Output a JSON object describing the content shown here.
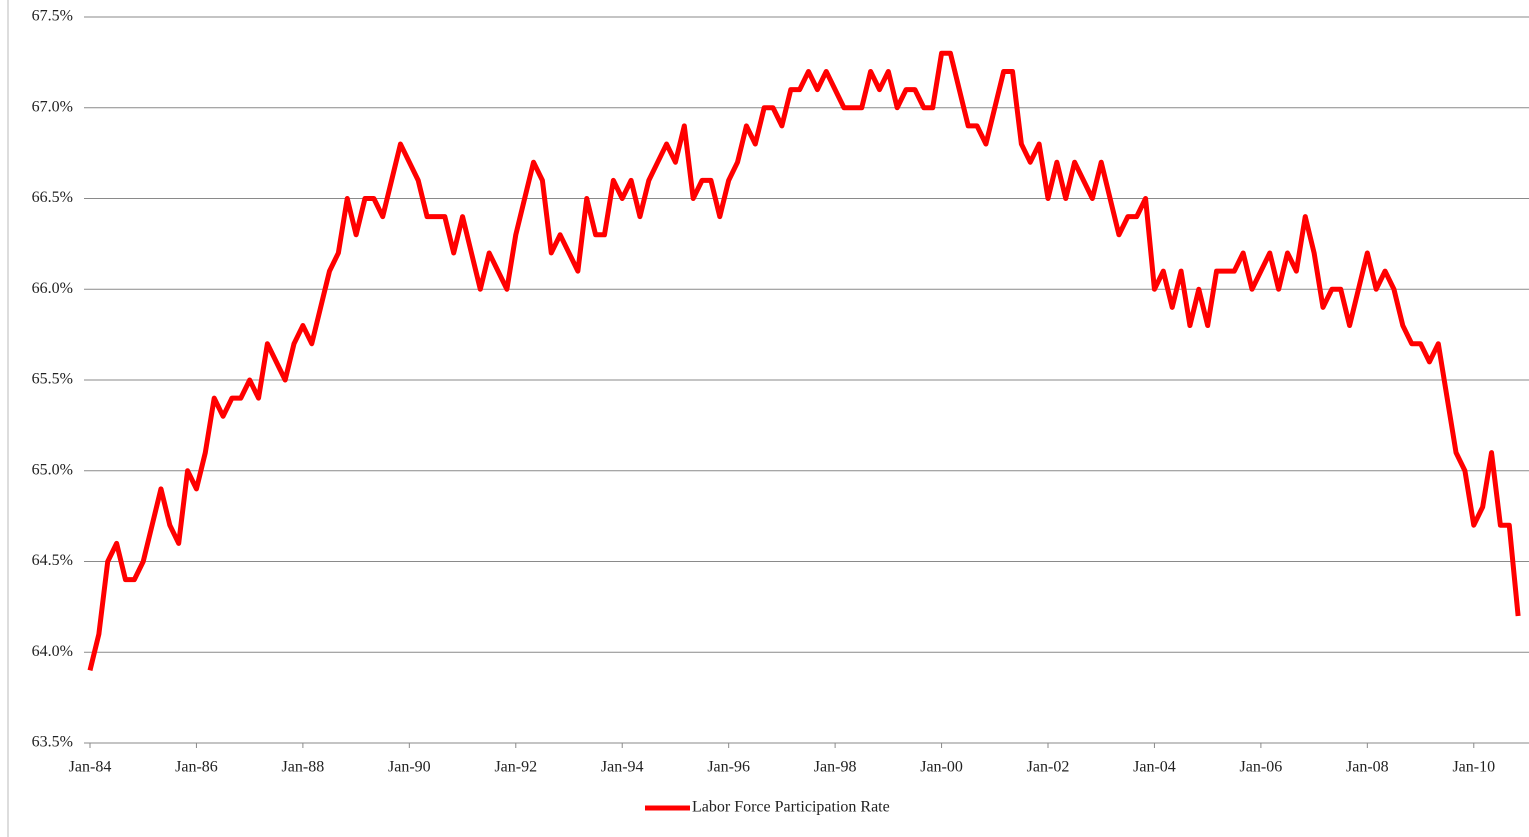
{
  "chart_data": {
    "type": "line",
    "x": [
      "1984-01",
      "1984-03",
      "1984-05",
      "1984-07",
      "1984-09",
      "1984-11",
      "1985-01",
      "1985-03",
      "1985-05",
      "1985-07",
      "1985-09",
      "1985-11",
      "1986-01",
      "1986-03",
      "1986-05",
      "1986-07",
      "1986-09",
      "1986-11",
      "1987-01",
      "1987-03",
      "1987-05",
      "1987-07",
      "1987-09",
      "1987-11",
      "1988-01",
      "1988-03",
      "1988-05",
      "1988-07",
      "1988-09",
      "1988-11",
      "1989-01",
      "1989-03",
      "1989-05",
      "1989-07",
      "1989-09",
      "1989-11",
      "1990-01",
      "1990-03",
      "1990-05",
      "1990-07",
      "1990-09",
      "1990-11",
      "1991-01",
      "1991-03",
      "1991-05",
      "1991-07",
      "1991-09",
      "1991-11",
      "1992-01",
      "1992-03",
      "1992-05",
      "1992-07",
      "1992-09",
      "1992-11",
      "1993-01",
      "1993-03",
      "1993-05",
      "1993-07",
      "1993-09",
      "1993-11",
      "1994-01",
      "1994-03",
      "1994-05",
      "1994-07",
      "1994-09",
      "1994-11",
      "1995-01",
      "1995-03",
      "1995-05",
      "1995-07",
      "1995-09",
      "1995-11",
      "1996-01",
      "1996-03",
      "1996-05",
      "1996-07",
      "1996-09",
      "1996-11",
      "1997-01",
      "1997-03",
      "1997-05",
      "1997-07",
      "1997-09",
      "1997-11",
      "1998-01",
      "1998-03",
      "1998-05",
      "1998-07",
      "1998-09",
      "1998-11",
      "1999-01",
      "1999-03",
      "1999-05",
      "1999-07",
      "1999-09",
      "1999-11",
      "2000-01",
      "2000-03",
      "2000-05",
      "2000-07",
      "2000-09",
      "2000-11",
      "2001-01",
      "2001-03",
      "2001-05",
      "2001-07",
      "2001-09",
      "2001-11",
      "2002-01",
      "2002-03",
      "2002-05",
      "2002-07",
      "2002-09",
      "2002-11",
      "2003-01",
      "2003-03",
      "2003-05",
      "2003-07",
      "2003-09",
      "2003-11",
      "2004-01",
      "2004-03",
      "2004-05",
      "2004-07",
      "2004-09",
      "2004-11",
      "2005-01",
      "2005-03",
      "2005-05",
      "2005-07",
      "2005-09",
      "2005-11",
      "2006-01",
      "2006-03",
      "2006-05",
      "2006-07",
      "2006-09",
      "2006-11",
      "2007-01",
      "2007-03",
      "2007-05",
      "2007-07",
      "2007-09",
      "2007-11",
      "2008-01",
      "2008-03",
      "2008-05",
      "2008-07",
      "2008-09",
      "2008-11",
      "2009-01",
      "2009-03",
      "2009-05",
      "2009-07",
      "2009-09",
      "2009-11",
      "2010-01",
      "2010-03",
      "2010-05",
      "2010-07",
      "2010-09",
      "2010-11"
    ],
    "series": [
      {
        "name": "Labor Force Participation Rate",
        "color": "#ff0000",
        "values": [
          63.9,
          64.1,
          64.5,
          64.6,
          64.4,
          64.4,
          64.5,
          64.7,
          64.9,
          64.7,
          64.6,
          65.0,
          64.9,
          65.1,
          65.4,
          65.3,
          65.4,
          65.4,
          65.5,
          65.4,
          65.7,
          65.6,
          65.5,
          65.7,
          65.8,
          65.7,
          65.9,
          66.1,
          66.2,
          66.5,
          66.3,
          66.5,
          66.5,
          66.4,
          66.6,
          66.8,
          66.7,
          66.6,
          66.4,
          66.4,
          66.4,
          66.2,
          66.4,
          66.2,
          66.0,
          66.2,
          66.1,
          66.0,
          66.3,
          66.5,
          66.7,
          66.6,
          66.2,
          66.3,
          66.2,
          66.1,
          66.5,
          66.3,
          66.3,
          66.6,
          66.5,
          66.6,
          66.4,
          66.6,
          66.7,
          66.8,
          66.7,
          66.9,
          66.5,
          66.6,
          66.6,
          66.4,
          66.6,
          66.7,
          66.9,
          66.8,
          67.0,
          67.0,
          66.9,
          67.1,
          67.1,
          67.2,
          67.1,
          67.2,
          67.1,
          67.0,
          67.0,
          67.0,
          67.2,
          67.1,
          67.2,
          67.0,
          67.1,
          67.1,
          67.0,
          67.0,
          67.3,
          67.3,
          67.1,
          66.9,
          66.9,
          66.8,
          67.0,
          67.2,
          67.2,
          66.8,
          66.7,
          66.8,
          66.5,
          66.7,
          66.5,
          66.7,
          66.6,
          66.5,
          66.7,
          66.5,
          66.3,
          66.4,
          66.4,
          66.5,
          66.0,
          66.1,
          65.9,
          66.1,
          65.8,
          66.0,
          65.8,
          66.1,
          66.1,
          66.1,
          66.2,
          66.0,
          66.1,
          66.2,
          66.0,
          66.2,
          66.1,
          66.4,
          66.2,
          65.9,
          66.0,
          66.0,
          65.8,
          66.0,
          66.2,
          66.0,
          66.1,
          66.0,
          65.8,
          65.7,
          65.7,
          65.6,
          65.7,
          65.4,
          65.1,
          65.0,
          64.7,
          64.8,
          65.1,
          64.7,
          64.7,
          64.2
        ]
      }
    ],
    "xlim": [
      "1984-01",
      "2011-01"
    ],
    "xticks": [
      {
        "value": "1984-01",
        "label": "Jan-84"
      },
      {
        "value": "1986-01",
        "label": "Jan-86"
      },
      {
        "value": "1988-01",
        "label": "Jan-88"
      },
      {
        "value": "1990-01",
        "label": "Jan-90"
      },
      {
        "value": "1992-01",
        "label": "Jan-92"
      },
      {
        "value": "1994-01",
        "label": "Jan-94"
      },
      {
        "value": "1996-01",
        "label": "Jan-96"
      },
      {
        "value": "1998-01",
        "label": "Jan-98"
      },
      {
        "value": "2000-01",
        "label": "Jan-00"
      },
      {
        "value": "2002-01",
        "label": "Jan-02"
      },
      {
        "value": "2004-01",
        "label": "Jan-04"
      },
      {
        "value": "2006-01",
        "label": "Jan-06"
      },
      {
        "value": "2008-01",
        "label": "Jan-08"
      },
      {
        "value": "2010-01",
        "label": "Jan-10"
      }
    ],
    "ylim": [
      63.5,
      67.5
    ],
    "yticks": [
      {
        "value": 63.5,
        "label": "63.5%"
      },
      {
        "value": 64.0,
        "label": "64.0%"
      },
      {
        "value": 64.5,
        "label": "64.5%"
      },
      {
        "value": 65.0,
        "label": "65.0%"
      },
      {
        "value": 65.5,
        "label": "65.5%"
      },
      {
        "value": 66.0,
        "label": "66.0%"
      },
      {
        "value": 66.5,
        "label": "66.5%"
      },
      {
        "value": 67.0,
        "label": "67.0%"
      },
      {
        "value": 67.5,
        "label": "67.5%"
      }
    ],
    "grid": true,
    "legend": "bottom"
  }
}
